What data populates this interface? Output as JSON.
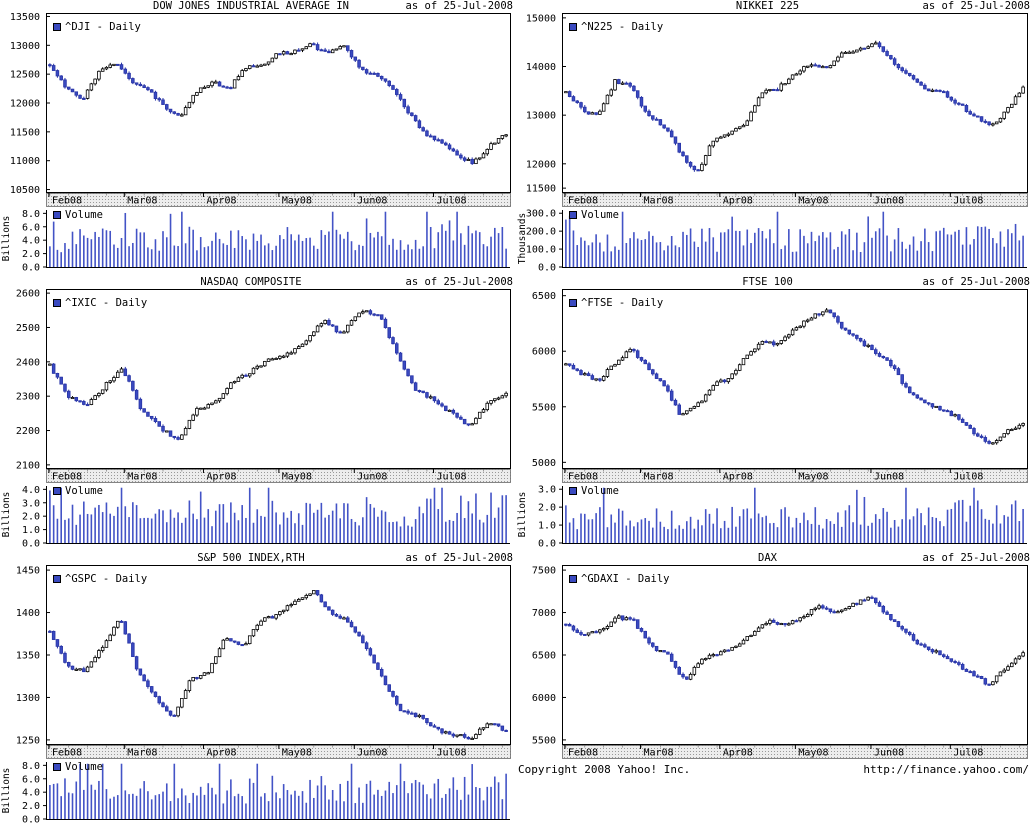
{
  "footer": {
    "copyright": "Copyright 2008 Yahoo! Inc.",
    "url": "http://finance.yahoo.com/"
  },
  "colors": {
    "candle_down": "#3a4ac0",
    "candle_down_stroke": "#2733a6",
    "candle_up_fill": "#ffffff",
    "candle_up_stroke": "#000000",
    "volume_bar": "#4353c6",
    "band_fill": "#ededed",
    "band_dot": "#999999",
    "axis": "#000000"
  },
  "chart_data": [
    {
      "type": "candlestick",
      "title": "DOW JONES INDUSTRIAL AVERAGE IN",
      "as_of": "as of 25-Jul-2008",
      "legend": "^DJI - Daily",
      "x_labels": [
        "Feb08",
        "Mar08",
        "Apr08",
        "May08",
        "Jun08",
        "Jul08"
      ],
      "yticks": [
        13500,
        13000,
        12500,
        12000,
        11500,
        11000,
        10500
      ],
      "ylim": [
        10440,
        13560
      ],
      "closes": [
        12650,
        12250,
        12070,
        12550,
        12700,
        12380,
        12250,
        11950,
        11740,
        12200,
        12360,
        12250,
        12620,
        12650,
        12850,
        12890,
        13010,
        12870,
        13030,
        12600,
        12480,
        12280,
        11840,
        11450,
        11350,
        11100,
        10960,
        11250,
        11470
      ],
      "volume": {
        "legend": "Volume",
        "unit": "Billions",
        "yticks": [
          8,
          6,
          4,
          2,
          0
        ],
        "ylim": [
          0,
          8.5
        ],
        "avg": 4.0,
        "peak": 8.2
      }
    },
    {
      "type": "candlestick",
      "title": "NIKKEI 225",
      "as_of": "as of 25-Jul-2008",
      "legend": "^N225 - Daily",
      "x_labels": [
        "Feb08",
        "Mar08",
        "Apr08",
        "May08",
        "Jun08",
        "Jul08"
      ],
      "yticks": [
        15000,
        14000,
        13000,
        12000,
        11500
      ],
      "ylim": [
        11400,
        15100
      ],
      "closes": [
        13500,
        13100,
        12990,
        13700,
        13600,
        12990,
        12780,
        12240,
        11790,
        12480,
        12600,
        12850,
        13480,
        13550,
        13850,
        14050,
        13950,
        14280,
        14340,
        14480,
        14090,
        13830,
        13540,
        13480,
        13240,
        12990,
        12760,
        13100,
        13570
      ],
      "volume": {
        "legend": "Volume",
        "unit": "Thousands",
        "yticks": [
          300,
          200,
          100,
          0
        ],
        "ylim": [
          0,
          318
        ],
        "avg": 150,
        "peak": 300
      }
    },
    {
      "type": "candlestick",
      "title": "NASDAQ COMPOSITE",
      "as_of": "as of 25-Jul-2008",
      "legend": "^IXIC - Daily",
      "x_labels": [
        "Feb08",
        "Mar08",
        "Apr08",
        "May08",
        "Jun08",
        "Jul08"
      ],
      "yticks": [
        2600,
        2500,
        2400,
        2300,
        2200,
        2100
      ],
      "ylim": [
        2088,
        2612
      ],
      "closes": [
        2390,
        2300,
        2270,
        2330,
        2380,
        2260,
        2210,
        2170,
        2260,
        2280,
        2340,
        2370,
        2410,
        2420,
        2460,
        2520,
        2480,
        2550,
        2540,
        2430,
        2320,
        2290,
        2250,
        2210,
        2280,
        2310
      ],
      "volume": {
        "legend": "Volume",
        "unit": "Billions",
        "yticks": [
          4,
          3,
          2,
          1,
          0
        ],
        "ylim": [
          0,
          4.25
        ],
        "avg": 2.2,
        "peak": 4.1
      }
    },
    {
      "type": "candlestick",
      "title": "FTSE 100",
      "as_of": "as of 25-Jul-2008",
      "legend": "^FTSE - Daily",
      "x_labels": [
        "Feb08",
        "Mar08",
        "Apr08",
        "May08",
        "Jun08",
        "Jul08"
      ],
      "yticks": [
        6500,
        6000,
        5500,
        5000
      ],
      "ylim": [
        4940,
        6560
      ],
      "closes": [
        5880,
        5790,
        5740,
        5890,
        6020,
        5850,
        5700,
        5420,
        5500,
        5700,
        5750,
        5960,
        6090,
        6060,
        6200,
        6310,
        6370,
        6200,
        6090,
        5990,
        5870,
        5620,
        5530,
        5480,
        5400,
        5270,
        5150,
        5280,
        5350
      ],
      "volume": {
        "legend": "Volume",
        "unit": "Billions",
        "yticks": [
          3,
          2,
          1,
          0
        ],
        "ylim": [
          0,
          3.18
        ],
        "avg": 1.4,
        "peak": 3.0
      }
    },
    {
      "type": "candlestick",
      "title": "S&P 500 INDEX,RTH",
      "as_of": "as of 25-Jul-2008",
      "legend": "^GSPC - Daily",
      "x_labels": [
        "Feb08",
        "Mar08",
        "Apr08",
        "May08",
        "Jun08",
        "Jul08"
      ],
      "yticks": [
        1450,
        1400,
        1350,
        1300,
        1250
      ],
      "ylim": [
        1244,
        1456
      ],
      "closes": [
        1378,
        1336,
        1331,
        1360,
        1395,
        1331,
        1300,
        1276,
        1320,
        1330,
        1370,
        1360,
        1390,
        1398,
        1413,
        1426,
        1400,
        1390,
        1360,
        1320,
        1285,
        1278,
        1262,
        1256,
        1252,
        1272,
        1260
      ],
      "volume": {
        "legend": "Volume",
        "unit": "Billions",
        "yticks": [
          8,
          6,
          4,
          2,
          0
        ],
        "ylim": [
          0,
          8.5
        ],
        "avg": 4.2,
        "peak": 8.2
      }
    },
    {
      "type": "candlestick",
      "title": "DAX",
      "as_of": "as of 25-Jul-2008",
      "legend": "^GDAXI - Daily",
      "x_labels": [
        "Feb08",
        "Mar08",
        "Apr08",
        "May08",
        "Jun08",
        "Jul08"
      ],
      "yticks": [
        7500,
        7000,
        6500,
        6000,
        5500
      ],
      "ylim": [
        5440,
        7560
      ],
      "closes": [
        6850,
        6750,
        6780,
        6950,
        6900,
        6600,
        6500,
        6200,
        6450,
        6520,
        6600,
        6750,
        6900,
        6850,
        6950,
        7080,
        7000,
        7100,
        7200,
        6950,
        6800,
        6600,
        6520,
        6400,
        6270,
        6150,
        6350,
        6540
      ],
      "volume": null
    }
  ]
}
